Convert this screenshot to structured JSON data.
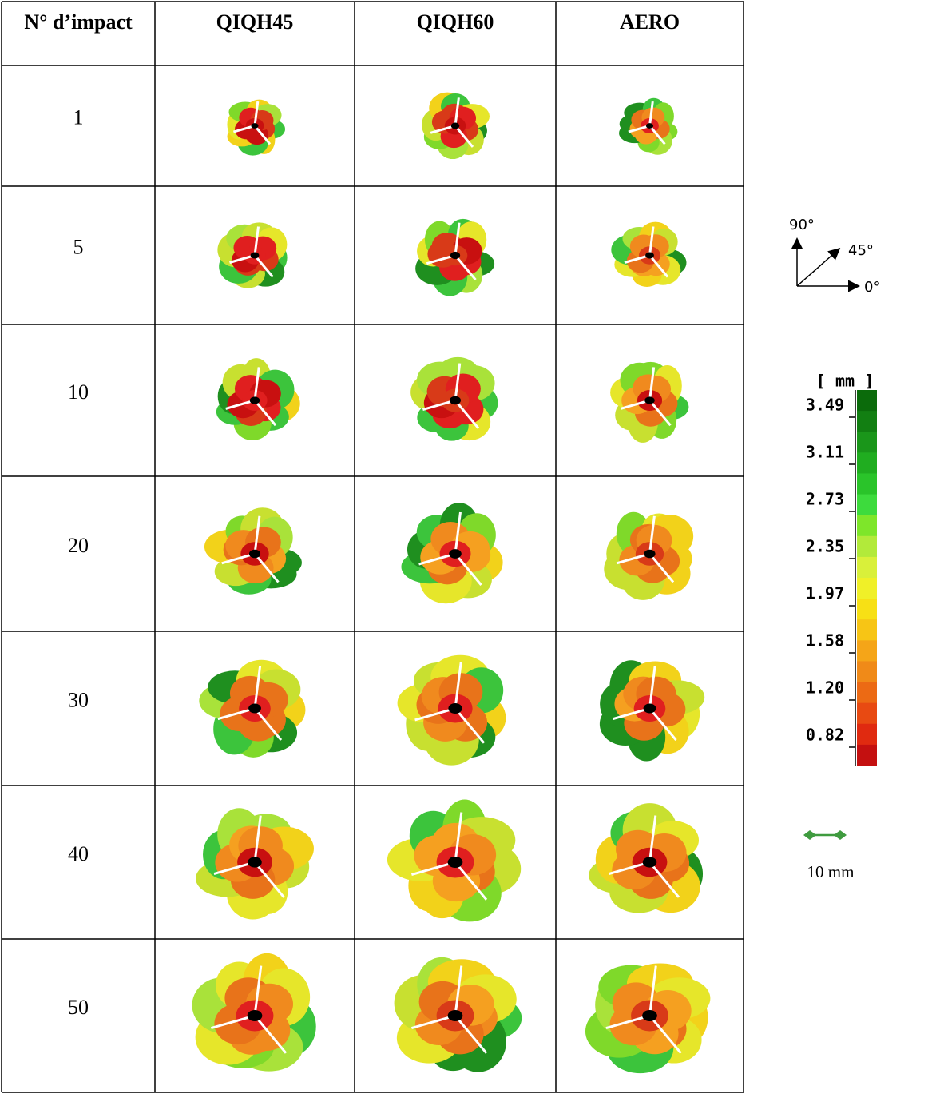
{
  "table": {
    "header": [
      "N° d’impact",
      "QIQH45",
      "QIQH60",
      "AERO"
    ],
    "rows": [
      "1",
      "5",
      "10",
      "20",
      "30",
      "40",
      "50"
    ]
  },
  "orientation": {
    "labels": [
      "90°",
      "45°",
      "0°"
    ]
  },
  "legend": {
    "unit": "[ mm ]",
    "labels": [
      "3.49",
      "3.11",
      "2.73",
      "2.35",
      "1.97",
      "1.58",
      "1.20",
      "0.82"
    ]
  },
  "scale": {
    "label": "10 mm"
  }
}
